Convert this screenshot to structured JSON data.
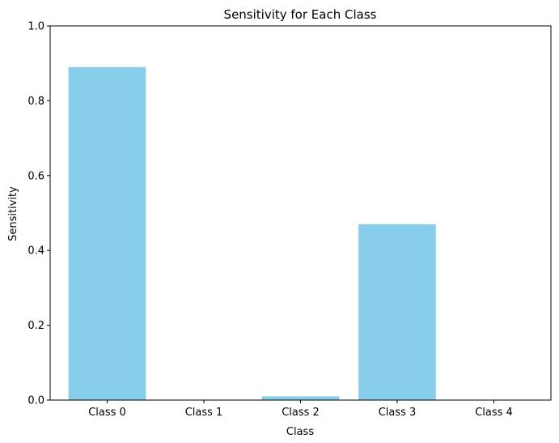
{
  "chart_data": {
    "type": "bar",
    "title": "Sensitivity for Each Class",
    "xlabel": "Class",
    "ylabel": "Sensitivity",
    "categories": [
      "Class 0",
      "Class 1",
      "Class 2",
      "Class 3",
      "Class 4"
    ],
    "values": [
      0.89,
      0.0,
      0.01,
      0.47,
      0.0
    ],
    "ylim": [
      0,
      1.0
    ],
    "yticks": [
      0.0,
      0.2,
      0.4,
      0.6,
      0.8,
      1.0
    ],
    "ytick_labels": [
      "0.0",
      "0.2",
      "0.4",
      "0.6",
      "0.8",
      "1.0"
    ],
    "grid": false,
    "bar_color": "#87ceeb"
  }
}
